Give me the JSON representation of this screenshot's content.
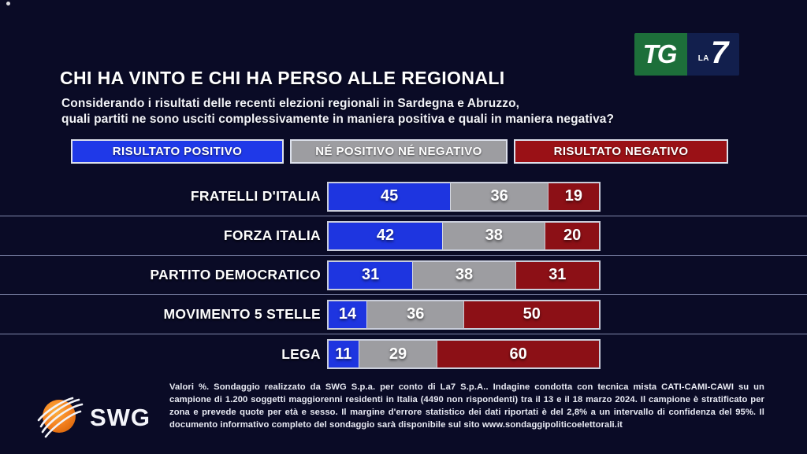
{
  "header": {
    "title": "CHI HA VINTO E CHI HA PERSO ALLE REGIONALI",
    "subtitle": "Considerando i risultati delle recenti elezioni regionali in Sardegna e Abruzzo,\nquali partiti ne sono usciti complessivamente in maniera positiva e quali in maniera negativa?"
  },
  "channel_logo": {
    "tg": "TG",
    "la": "LA",
    "seven": "7"
  },
  "legend": {
    "items": [
      {
        "label": "RISULTATO POSITIVO",
        "color": "#1f39e8"
      },
      {
        "label": "NÉ POSITIVO NÉ NEGATIVO",
        "color": "#9d9da1"
      },
      {
        "label": "RISULTATO NEGATIVO",
        "color": "#9a1116"
      }
    ]
  },
  "chart_data": {
    "type": "bar",
    "variant": "horizontal-stacked",
    "unit": "%",
    "xlim": [
      0,
      100
    ],
    "categories": [
      "FRATELLI D'ITALIA",
      "FORZA ITALIA",
      "PARTITO DEMOCRATICO",
      "MOVIMENTO 5 STELLE",
      "LEGA"
    ],
    "series": [
      {
        "name": "RISULTATO POSITIVO",
        "color": "#1e35e0",
        "values": [
          45,
          42,
          31,
          14,
          11
        ]
      },
      {
        "name": "NÉ POSITIVO NÉ NEGATIVO",
        "color": "#9d9da1",
        "values": [
          36,
          38,
          38,
          36,
          29
        ]
      },
      {
        "name": "RISULTATO NEGATIVO",
        "color": "#8c1016",
        "values": [
          19,
          20,
          31,
          50,
          60
        ]
      }
    ],
    "title": "CHI HA VINTO E CHI HA PERSO ALLE REGIONALI",
    "legend_position": "top",
    "grid": false
  },
  "footer": {
    "brand": "SWG",
    "disclaimer": "Valori %. Sondaggio realizzato da SWG S.p.a. per conto di La7 S.p.A.. Indagine condotta con tecnica mista CATI-CAMI-CAWI su un campione di 1.200 soggetti maggiorenni residenti in Italia (4490 non rispondenti) tra il 13 e il 18 marzo 2024. Il campione è stratificato per zona e prevede quote per età e sesso. Il margine d'errore statistico dei dati riportati è del 2,8% a un intervallo di confidenza del 95%. Il documento informativo completo del sondaggio sarà disponibile sul sito www.sondaggipoliticoelettorali.it"
  }
}
